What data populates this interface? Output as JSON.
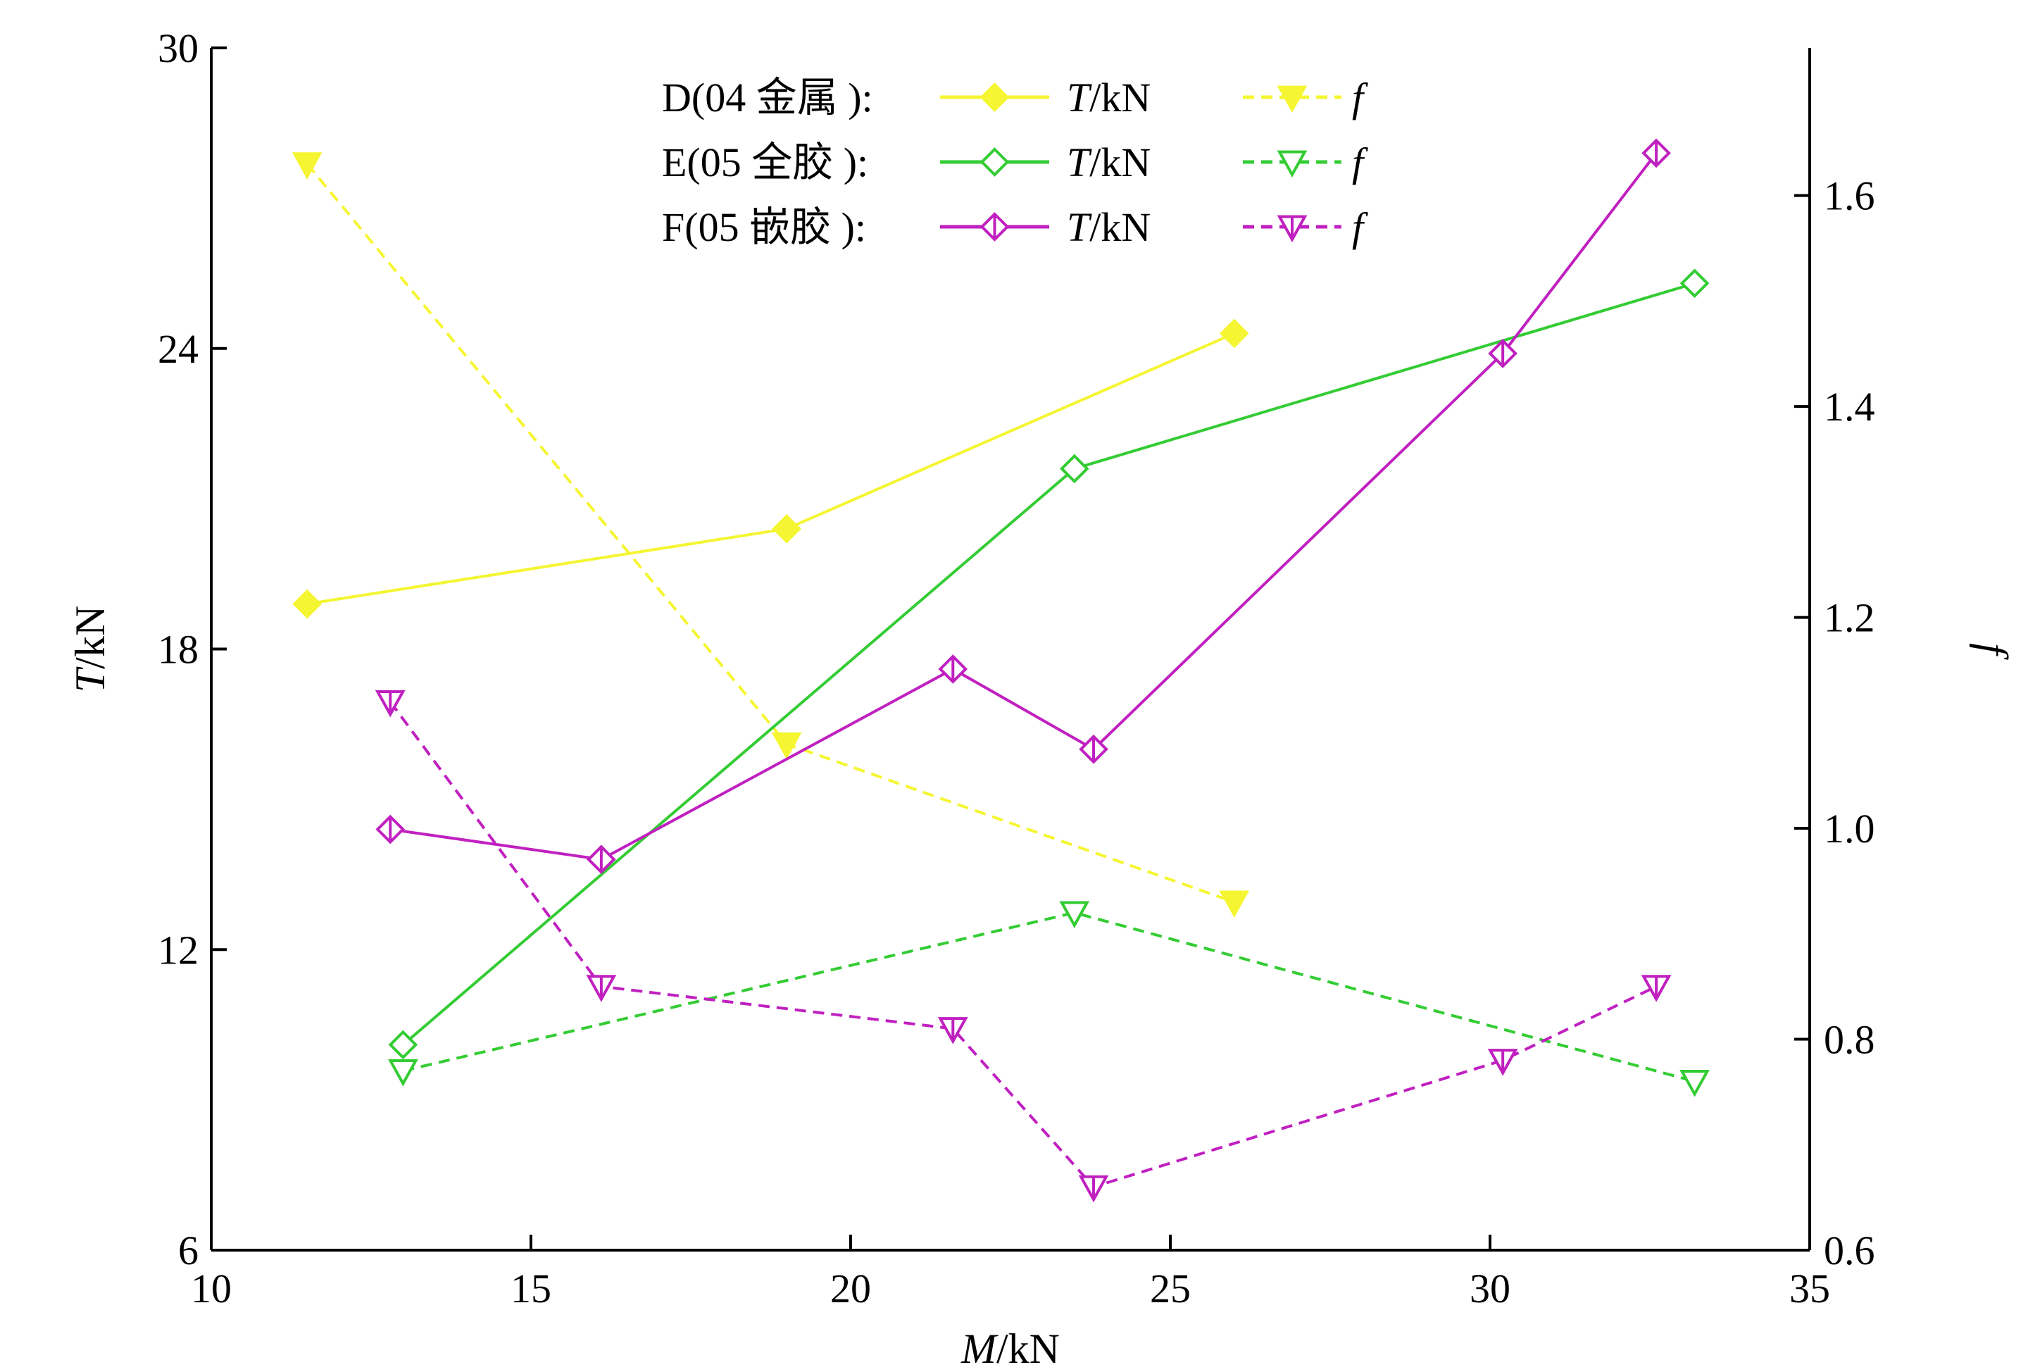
{
  "chart_data": {
    "type": "line",
    "x_axis": {
      "label_var": "M",
      "label_unit": "/kN",
      "range": [
        10,
        35
      ],
      "ticks": [
        "10",
        "15",
        "20",
        "25",
        "30",
        "35"
      ]
    },
    "y_axis_left": {
      "label_var": "T",
      "label_unit": "/kN",
      "range": [
        6,
        30
      ],
      "ticks": [
        "6",
        "12",
        "18",
        "24",
        "30"
      ]
    },
    "y_axis_right": {
      "label_var": "f",
      "range": [
        0.6,
        1.74
      ],
      "ticks": [
        "0.6",
        "0.8",
        "1.0",
        "1.2",
        "1.4",
        "1.6"
      ]
    },
    "grid": false,
    "legend": {
      "placement": "top-center",
      "rows": [
        {
          "group": "D(04 金属 ):",
          "t_label_var": "T",
          "t_label_unit": "/kN",
          "f_label": "f"
        },
        {
          "group": "E(05 全胶 ):",
          "t_label_var": "T",
          "t_label_unit": "/kN",
          "f_label": "f"
        },
        {
          "group": "F(05 嵌胶 ):",
          "t_label_var": "T",
          "t_label_unit": "/kN",
          "f_label": "f"
        }
      ]
    },
    "series": [
      {
        "group": "D(04 金属 ):",
        "quantity": "T/kN",
        "axis": "left",
        "style": "solid",
        "marker": "diamond-filled",
        "color": "#f5f532",
        "x": [
          11.5,
          19.0,
          26.0
        ],
        "y": [
          18.9,
          20.4,
          24.3
        ]
      },
      {
        "group": "D(04 金属 ):",
        "quantity": "f",
        "axis": "right",
        "style": "dashed",
        "marker": "triangle-down-filled",
        "color": "#f5f532",
        "x": [
          11.5,
          19.0,
          26.0
        ],
        "y": [
          1.63,
          1.08,
          0.93
        ]
      },
      {
        "group": "E(05 全胶 ):",
        "quantity": "T/kN",
        "axis": "left",
        "style": "solid",
        "marker": "diamond-open",
        "color": "#33cc33",
        "x": [
          13.0,
          23.5,
          33.2
        ],
        "y": [
          10.1,
          21.6,
          25.3
        ]
      },
      {
        "group": "E(05 全胶 ):",
        "quantity": "f",
        "axis": "right",
        "style": "dashed",
        "marker": "triangle-down-open",
        "color": "#33cc33",
        "x": [
          13.0,
          23.5,
          33.2
        ],
        "y": [
          0.77,
          0.92,
          0.76
        ]
      },
      {
        "group": "F(05 嵌胶 ):",
        "quantity": "T/kN",
        "axis": "left",
        "style": "solid",
        "marker": "diamond-bar",
        "color": "#c020c0",
        "x": [
          12.8,
          16.1,
          21.6,
          23.8,
          30.2,
          32.6
        ],
        "y": [
          14.4,
          13.8,
          17.6,
          16.0,
          23.9,
          27.9
        ]
      },
      {
        "group": "F(05 嵌胶 ):",
        "quantity": "f",
        "axis": "right",
        "style": "dashed",
        "marker": "triangle-down-bar",
        "color": "#c020c0",
        "x": [
          12.8,
          16.1,
          21.6,
          23.8,
          30.2,
          32.6
        ],
        "y": [
          1.12,
          0.85,
          0.81,
          0.66,
          0.78,
          0.85
        ]
      }
    ]
  }
}
